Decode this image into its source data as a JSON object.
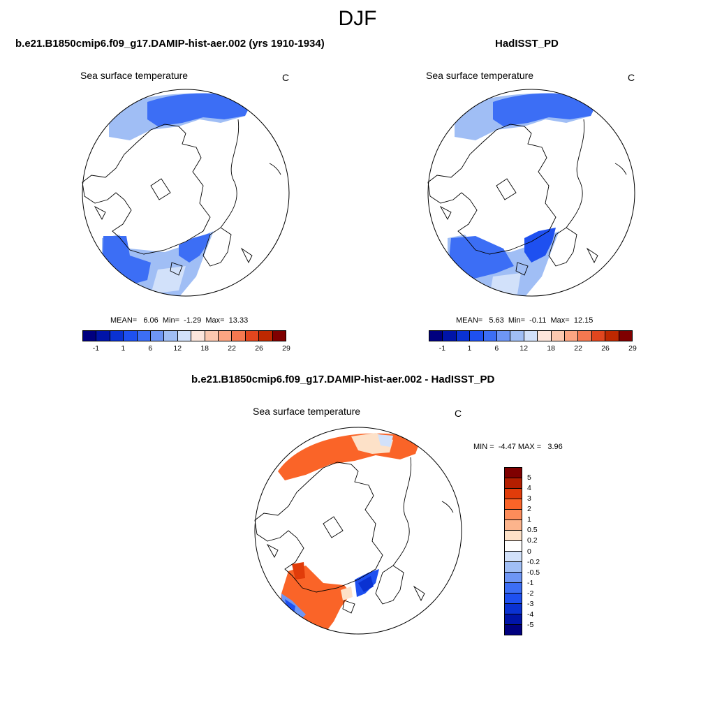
{
  "figure": {
    "season": "DJF"
  },
  "panels": {
    "model": {
      "title": "b.e21.B1850cmip6.f09_g17.DAMIP-hist-aer.002 (yrs 1910-1934)",
      "variable": "Sea surface temperature",
      "units": "C",
      "stats": "MEAN=   6.06  Min=  -1.29  Max=  13.33",
      "mean": 6.06,
      "min": -1.29,
      "max": 13.33
    },
    "obs": {
      "title": "HadISST_PD",
      "variable": "Sea surface temperature",
      "units": "C",
      "stats": "MEAN=   5.63  Min=  -0.11  Max=  12.15",
      "mean": 5.63,
      "min": -0.11,
      "max": 12.15
    },
    "diff": {
      "title": "b.e21.B1850cmip6.f09_g17.DAMIP-hist-aer.002 - HadISST_PD",
      "variable": "Sea surface temperature",
      "units": "C",
      "stats": "MIN =  -4.47 MAX =   3.96",
      "min": -4.47,
      "max": 3.96
    }
  },
  "colorbars": {
    "sst": {
      "colors": [
        "#00007f",
        "#0014a8",
        "#0a32d2",
        "#1e50f0",
        "#3c6ef5",
        "#6e96f5",
        "#a0bef5",
        "#d2e1fa",
        "#fde6dc",
        "#fcc8af",
        "#fca582",
        "#f57850",
        "#e1461e",
        "#be2800",
        "#7f0000"
      ],
      "tick_labels": [
        "-1",
        "1",
        "6",
        "12",
        "18",
        "22",
        "26",
        "29"
      ]
    },
    "diff": {
      "colors": [
        "#7f0000",
        "#b41e00",
        "#e13c0a",
        "#fa6428",
        "#fc8c5a",
        "#fcb48c",
        "#fde1c8",
        "#ffffff",
        "#d2e1fa",
        "#a0bef5",
        "#6e96f5",
        "#3c6ef5",
        "#1e50f0",
        "#0a32d2",
        "#0014a8",
        "#00007f"
      ],
      "tick_labels": [
        "5",
        "4",
        "3",
        "2",
        "1",
        "0.5",
        "0.2",
        "0",
        "-0.2",
        "-0.5",
        "-1",
        "-2",
        "-3",
        "-4",
        "-5"
      ]
    }
  },
  "chart_data": [
    {
      "type": "heatmap",
      "title": "b.e21.B1850cmip6.f09_g17.DAMIP-hist-aer.002 (yrs 1910-1934)",
      "projection": "north polar stereographic",
      "variable": "Sea surface temperature",
      "units": "C",
      "mean": 6.06,
      "min": -1.29,
      "max": 13.33,
      "contour_levels": [
        -1,
        1,
        6,
        12,
        18,
        22,
        26,
        29
      ]
    },
    {
      "type": "heatmap",
      "title": "HadISST_PD",
      "projection": "north polar stereographic",
      "variable": "Sea surface temperature",
      "units": "C",
      "mean": 5.63,
      "min": -0.11,
      "max": 12.15,
      "contour_levels": [
        -1,
        1,
        6,
        12,
        18,
        22,
        26,
        29
      ]
    },
    {
      "type": "heatmap",
      "title": "b.e21.B1850cmip6.f09_g17.DAMIP-hist-aer.002 - HadISST_PD",
      "projection": "north polar stereographic",
      "variable": "Sea surface temperature",
      "units": "C",
      "min": -4.47,
      "max": 3.96,
      "contour_levels": [
        -5,
        -4,
        -3,
        -2,
        -1,
        -0.5,
        -0.2,
        0,
        0.2,
        0.5,
        1,
        2,
        3,
        4,
        5
      ]
    }
  ]
}
